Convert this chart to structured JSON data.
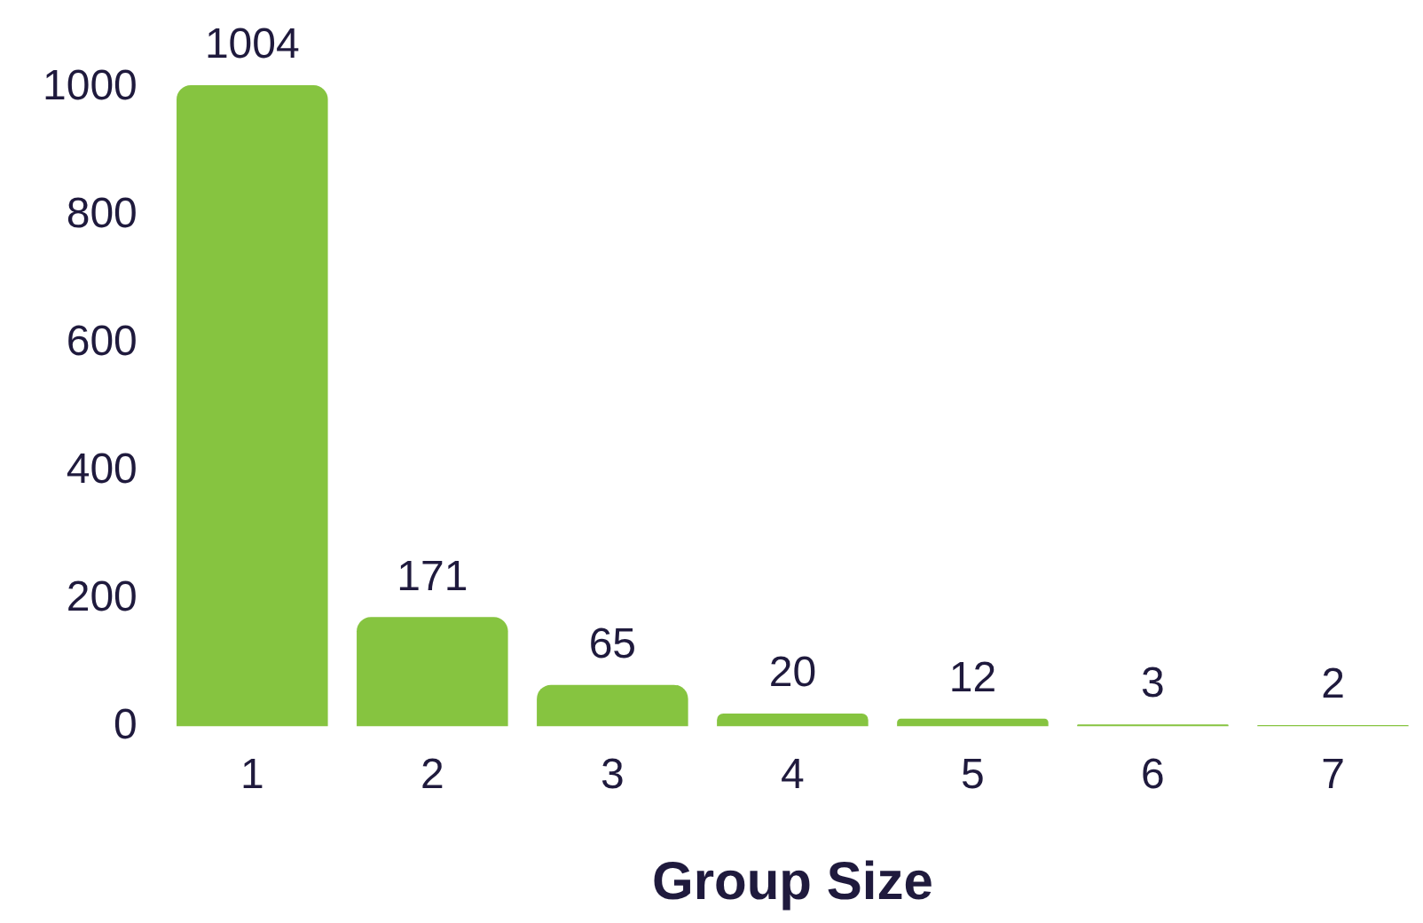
{
  "chart_data": {
    "type": "bar",
    "xlabel": "Group Size",
    "categories": [
      "1",
      "2",
      "3",
      "4",
      "5",
      "6",
      "7"
    ],
    "values": [
      1004,
      171,
      65,
      20,
      12,
      3,
      2
    ],
    "color": "#86c440",
    "ylim": [
      0,
      1004
    ],
    "yticks": [
      0,
      200,
      400,
      600,
      800,
      1000
    ],
    "grid": false,
    "legend": false,
    "data_labels": true
  }
}
